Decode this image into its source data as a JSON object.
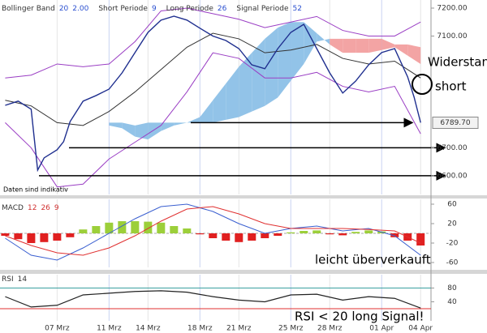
{
  "chart_data": [
    {
      "type": "line",
      "header": [
        {
          "name": "Bollinger Band",
          "params": [
            "20",
            "2.00"
          ]
        },
        {
          "name": "Short Periode",
          "params": [
            "9"
          ]
        },
        {
          "name": "Long Periode",
          "params": [
            "26"
          ]
        },
        {
          "name": "Signal Periode",
          "params": [
            "52"
          ]
        }
      ],
      "xlim": [
        2.6,
        35.8
      ],
      "xticks": [
        {
          "value": 7,
          "label": "07 Mrz",
          "color": "#333333"
        },
        {
          "value": 11,
          "label": "11 Mrz",
          "color": "#3a5fcd"
        },
        {
          "value": 14,
          "label": "14 Mrz",
          "color": "#333333"
        },
        {
          "value": 18,
          "label": "18 Mrz",
          "color": "#3a5fcd"
        },
        {
          "value": 21,
          "label": "21 Mrz",
          "color": "#333333"
        },
        {
          "value": 25,
          "label": "25 Mrz",
          "color": "#3a5fcd"
        },
        {
          "value": 28,
          "label": "28 Mrz",
          "color": "#333333"
        },
        {
          "value": 32,
          "label": "01 Apr",
          "color": "#3a5fcd"
        },
        {
          "value": 35,
          "label": "04 Apr",
          "color": "#333333"
        }
      ],
      "ylim": [
        6533,
        7229
      ],
      "yticks": [
        {
          "value": 7200,
          "label": "7200.00"
        },
        {
          "value": 7100,
          "label": "7100.00"
        },
        {
          "value": 6700,
          "label": "6700.00"
        },
        {
          "value": 6600,
          "label": "6600.00"
        }
      ],
      "grid": false,
      "cloud": {
        "x": [
          11,
          12,
          13,
          14,
          15,
          16,
          17,
          18,
          19,
          20,
          21,
          22,
          23,
          24,
          25,
          26,
          27,
          28,
          29,
          30,
          31,
          32,
          33,
          34,
          35
        ],
        "span_a": [
          6790,
          6790,
          6780,
          6790,
          6790,
          6790,
          6790,
          6810,
          6870,
          6930,
          6990,
          7040,
          7090,
          7130,
          7150,
          7150,
          7110,
          7070,
          7040,
          7040,
          7040,
          7050,
          7060,
          7030,
          7000
        ],
        "span_b": [
          6780,
          6770,
          6740,
          6730,
          6760,
          6780,
          6790,
          6790,
          6790,
          6800,
          6810,
          6830,
          6850,
          6880,
          6940,
          7000,
          7080,
          7090,
          7090,
          7090,
          7090,
          7090,
          7070,
          7070,
          7060
        ],
        "up_color": "#86bde6",
        "down_color": "#f29a9a"
      },
      "series": [
        {
          "color": "#9a3ec4",
          "x": [
            3,
            5,
            7,
            9,
            11,
            13,
            15,
            17,
            19,
            21,
            23,
            25,
            27,
            29,
            31,
            33,
            35
          ],
          "values": [
            6950,
            6960,
            7000,
            6990,
            7000,
            7080,
            7190,
            7200,
            7180,
            7160,
            7130,
            7150,
            7170,
            7120,
            7100,
            7100,
            7150
          ]
        },
        {
          "color": "#333333",
          "x": [
            3,
            5,
            7,
            9,
            11,
            13,
            15,
            17,
            19,
            21,
            23,
            25,
            27,
            29,
            31,
            33,
            35
          ],
          "values": [
            6870,
            6850,
            6790,
            6780,
            6830,
            6900,
            6980,
            7060,
            7110,
            7090,
            7040,
            7050,
            7070,
            7020,
            7000,
            7010,
            6950
          ]
        },
        {
          "color": "#9a3ec4",
          "x": [
            3,
            5,
            7,
            9,
            11,
            13,
            15,
            17,
            19,
            21,
            23,
            25,
            27,
            29,
            31,
            33,
            35
          ],
          "values": [
            6790,
            6700,
            6560,
            6570,
            6660,
            6720,
            6780,
            6900,
            7040,
            7020,
            6950,
            6950,
            6970,
            6920,
            6900,
            6920,
            6750
          ]
        },
        {
          "color": "#1f2f8f",
          "x": [
            3,
            4,
            5,
            5.5,
            6,
            7,
            7.5,
            8,
            9,
            10,
            11,
            12,
            13,
            14,
            15,
            16,
            17,
            18,
            19,
            20,
            21,
            22,
            23,
            24,
            25,
            26,
            27,
            28,
            29,
            30,
            31,
            32,
            33,
            34,
            34.5,
            35
          ],
          "values": [
            6852,
            6867,
            6838,
            6620,
            6664,
            6693,
            6722,
            6794,
            6867,
            6887,
            6910,
            6968,
            7041,
            7113,
            7157,
            7171,
            7157,
            7128,
            7100,
            7084,
            7055,
            6997,
            6983,
            7055,
            7113,
            7142,
            7055,
            6968,
            6896,
            6939,
            6997,
            7041,
            7055,
            6954,
            6881,
            6790
          ]
        }
      ],
      "last_price": {
        "value": 6789.7,
        "label": "6789.70"
      },
      "levels": [
        6790,
        6700,
        6600
      ],
      "note": "Daten sind indikativ"
    },
    {
      "type": "macd",
      "title": "MACD",
      "params": [
        "12",
        "26",
        "9"
      ],
      "ylim": [
        -70,
        70
      ],
      "yticks": [
        60,
        20,
        -20,
        -60
      ],
      "histogram": {
        "x": [
          3,
          4,
          5,
          6,
          7,
          8,
          9,
          10,
          11,
          12,
          13,
          14,
          15,
          16,
          17,
          18,
          19,
          20,
          21,
          22,
          23,
          24,
          25,
          26,
          27,
          28,
          29,
          30,
          31,
          32,
          33,
          34,
          35
        ],
        "values": [
          -5,
          -12,
          -20,
          -18,
          -15,
          -8,
          8,
          15,
          22,
          25,
          25,
          24,
          22,
          15,
          10,
          -2,
          -10,
          -15,
          -18,
          -15,
          -10,
          -5,
          2,
          5,
          6,
          -2,
          -4,
          3,
          6,
          4,
          -8,
          -15,
          -25
        ],
        "positive_color": "#9ccf3a",
        "negative_color": "#e02020"
      },
      "series": [
        {
          "color": "#3a5fd0",
          "x": [
            3,
            5,
            7,
            9,
            11,
            13,
            15,
            17,
            19,
            21,
            23,
            25,
            27,
            29,
            31,
            33,
            35
          ],
          "values": [
            -10,
            -45,
            -55,
            -30,
            0,
            30,
            55,
            60,
            45,
            20,
            0,
            10,
            15,
            5,
            10,
            -5,
            -45
          ]
        },
        {
          "color": "#e03030",
          "x": [
            3,
            5,
            7,
            9,
            11,
            13,
            15,
            17,
            19,
            21,
            23,
            25,
            27,
            29,
            31,
            33,
            35
          ],
          "values": [
            -5,
            -25,
            -40,
            -45,
            -30,
            -5,
            25,
            50,
            55,
            40,
            20,
            10,
            10,
            10,
            8,
            5,
            -20
          ]
        }
      ]
    },
    {
      "type": "rsi",
      "title": "RSI",
      "params": [
        "14"
      ],
      "ylim": [
        0,
        110
      ],
      "yticks": [
        80,
        40
      ],
      "levels": [
        {
          "value": 80,
          "color": "#3aa0a0"
        },
        {
          "value": 20,
          "color": "#e03030"
        }
      ],
      "series": [
        {
          "color": "#222222",
          "x": [
            3,
            5,
            7,
            9,
            11,
            13,
            15,
            17,
            19,
            21,
            23,
            25,
            27,
            29,
            31,
            33,
            35
          ],
          "values": [
            55,
            25,
            30,
            60,
            65,
            70,
            72,
            68,
            55,
            45,
            40,
            60,
            62,
            45,
            55,
            50,
            22
          ]
        }
      ]
    }
  ],
  "annotations": {
    "resistance": "Widerstand",
    "short": "short",
    "oversold": "leicht überverkauft",
    "rsi_signal": "RSI < 20 long Signal!"
  }
}
